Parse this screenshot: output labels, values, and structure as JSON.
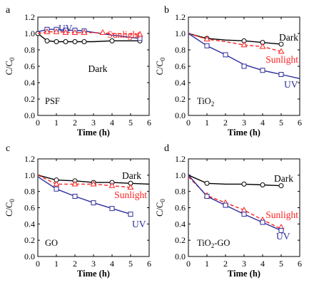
{
  "chart_data": [
    {
      "panel": "a",
      "name": "PSF",
      "type": "line",
      "xlabel": "Time (h)",
      "ylabel": "C/C",
      "ylabel_sub": "0",
      "xlim": [
        0,
        6
      ],
      "ylim": [
        0,
        1.2
      ],
      "xticks": [
        "0",
        "1",
        "2",
        "3",
        "4",
        "5",
        "6"
      ],
      "yticks": [
        "0.0",
        "0.2",
        "0.4",
        "0.6",
        "0.8",
        "1.0",
        "1.2"
      ],
      "series": [
        {
          "name": "Dark",
          "marker": "circle",
          "dashed": false,
          "color": "#000000",
          "points": [
            [
              0,
              1.0
            ],
            [
              0.5,
              0.91
            ],
            [
              1,
              0.9
            ],
            [
              1.5,
              0.9
            ],
            [
              2,
              0.9
            ],
            [
              2.5,
              0.9
            ],
            [
              4,
              0.91
            ],
            [
              5.5,
              0.91
            ]
          ],
          "curve": [
            [
              0,
              1.0
            ],
            [
              0.5,
              0.91
            ],
            [
              1,
              0.9
            ],
            [
              2,
              0.9
            ],
            [
              3,
              0.9
            ],
            [
              4,
              0.91
            ],
            [
              5.5,
              0.91
            ]
          ]
        },
        {
          "name": "UV",
          "marker": "square",
          "dashed": false,
          "color": "#2e2e9a",
          "points": [
            [
              0.5,
              1.05
            ],
            [
              1,
              1.05
            ],
            [
              1.5,
              1.04
            ],
            [
              2,
              1.04
            ],
            [
              2.5,
              1.03
            ],
            [
              5.5,
              0.94
            ]
          ],
          "curve": [
            [
              0,
              1.02
            ],
            [
              0.5,
              1.05
            ],
            [
              1,
              1.05
            ],
            [
              1.5,
              1.04
            ],
            [
              2,
              1.04
            ],
            [
              2.5,
              1.03
            ],
            [
              4,
              0.98
            ],
            [
              5.5,
              0.94
            ]
          ]
        },
        {
          "name": "Sunlight",
          "marker": "triangle",
          "dashed": true,
          "color": "#ff2020",
          "points": [
            [
              0.5,
              1.02
            ],
            [
              1,
              1.02
            ],
            [
              1.5,
              1.01
            ],
            [
              2,
              1.01
            ],
            [
              2.5,
              1.01
            ],
            [
              3.5,
              1.01
            ],
            [
              5.5,
              0.99
            ]
          ],
          "curve": [
            [
              0,
              1.0
            ],
            [
              0.5,
              1.02
            ],
            [
              1,
              1.02
            ],
            [
              2,
              1.01
            ],
            [
              3,
              1.01
            ],
            [
              4,
              1.0
            ],
            [
              5.5,
              0.99
            ]
          ]
        }
      ]
    },
    {
      "panel": "b",
      "name": "TiO",
      "name_sub": "2",
      "type": "line",
      "xlabel": "Time (h)",
      "ylabel": "C/C",
      "ylabel_sub": "0",
      "xlim": [
        0,
        6
      ],
      "ylim": [
        0,
        1.2
      ],
      "xticks": [
        "0",
        "1",
        "2",
        "3",
        "4",
        "5",
        "6"
      ],
      "yticks": [
        "0.0",
        "0.2",
        "0.4",
        "0.6",
        "0.8",
        "1.0",
        "1.2"
      ],
      "series": [
        {
          "name": "Dark",
          "marker": "circle",
          "dashed": false,
          "color": "#000000",
          "points": [
            [
              1,
              0.94
            ],
            [
              3,
              0.91
            ],
            [
              4,
              0.89
            ],
            [
              5,
              0.87
            ]
          ],
          "curve": [
            [
              0,
              1.0
            ],
            [
              1,
              0.94
            ],
            [
              2,
              0.92
            ],
            [
              3,
              0.91
            ],
            [
              4,
              0.89
            ],
            [
              5,
              0.87
            ]
          ]
        },
        {
          "name": "Sunlight",
          "marker": "triangle",
          "dashed": true,
          "color": "#ff2020",
          "points": [
            [
              1,
              0.93
            ],
            [
              3,
              0.86
            ],
            [
              4,
              0.84
            ],
            [
              5,
              0.78
            ]
          ],
          "curve": [
            [
              0,
              1.0
            ],
            [
              1,
              0.93
            ],
            [
              2,
              0.9
            ],
            [
              3,
              0.86
            ],
            [
              4,
              0.84
            ],
            [
              5,
              0.78
            ]
          ]
        },
        {
          "name": "UV",
          "marker": "square",
          "dashed": false,
          "color": "#2e2e9a",
          "points": [
            [
              1,
              0.85
            ],
            [
              2,
              0.74
            ],
            [
              3,
              0.6
            ],
            [
              4,
              0.55
            ],
            [
              5,
              0.5
            ]
          ],
          "curve": [
            [
              0,
              1.0
            ],
            [
              1,
              0.85
            ],
            [
              2,
              0.74
            ],
            [
              3,
              0.62
            ],
            [
              4,
              0.55
            ],
            [
              5,
              0.5
            ],
            [
              6,
              0.45
            ]
          ]
        }
      ]
    },
    {
      "panel": "c",
      "name": "GO",
      "type": "line",
      "xlabel": "Time (h)",
      "ylabel": "C/C",
      "ylabel_sub": "0",
      "xlim": [
        0,
        6
      ],
      "ylim": [
        0,
        1.2
      ],
      "xticks": [
        "0",
        "1",
        "2",
        "3",
        "4",
        "5",
        "6"
      ],
      "yticks": [
        "0.0",
        "0.2",
        "0.4",
        "0.6",
        "0.8",
        "1.0",
        "1.2"
      ],
      "series": [
        {
          "name": "Dark",
          "marker": "circle",
          "dashed": false,
          "color": "#000000",
          "points": [
            [
              1,
              0.94
            ],
            [
              2,
              0.93
            ],
            [
              3,
              0.91
            ],
            [
              4,
              0.91
            ],
            [
              5,
              0.9
            ]
          ],
          "curve": [
            [
              0,
              1.0
            ],
            [
              1,
              0.94
            ],
            [
              2,
              0.93
            ],
            [
              3,
              0.91
            ],
            [
              4,
              0.91
            ],
            [
              5,
              0.9
            ],
            [
              6,
              0.89
            ]
          ]
        },
        {
          "name": "Sunlight",
          "marker": "triangle",
          "dashed": true,
          "color": "#ff2020",
          "points": [
            [
              1,
              0.89
            ],
            [
              2,
              0.89
            ],
            [
              3,
              0.89
            ],
            [
              4,
              0.87
            ],
            [
              5,
              0.85
            ]
          ],
          "curve": [
            [
              0,
              1.0
            ],
            [
              1,
              0.89
            ],
            [
              2,
              0.89
            ],
            [
              3,
              0.89
            ],
            [
              4,
              0.87
            ],
            [
              5,
              0.85
            ]
          ]
        },
        {
          "name": "UV",
          "marker": "square",
          "dashed": false,
          "color": "#2e2e9a",
          "points": [
            [
              1,
              0.83
            ],
            [
              2,
              0.74
            ],
            [
              3,
              0.66
            ],
            [
              4,
              0.59
            ],
            [
              5,
              0.52
            ]
          ],
          "curve": [
            [
              0,
              0.98
            ],
            [
              1,
              0.83
            ],
            [
              2,
              0.74
            ],
            [
              3,
              0.66
            ],
            [
              4,
              0.59
            ],
            [
              5,
              0.52
            ]
          ]
        }
      ]
    },
    {
      "panel": "d",
      "name": "TiO",
      "name_sub": "2",
      "name_suffix": "-GO",
      "type": "line",
      "xlabel": "Time (h)",
      "ylabel": "C/C",
      "ylabel_sub": "0",
      "xlim": [
        0,
        6
      ],
      "ylim": [
        0,
        1.2
      ],
      "xticks": [
        "0",
        "1",
        "2",
        "3",
        "4",
        "5",
        "6"
      ],
      "yticks": [
        "0.0",
        "0.2",
        "0.4",
        "0.6",
        "0.8",
        "1.0",
        "1.2"
      ],
      "series": [
        {
          "name": "Dark",
          "marker": "circle",
          "dashed": false,
          "color": "#000000",
          "points": [
            [
              1,
              0.9
            ],
            [
              3,
              0.89
            ],
            [
              4,
              0.88
            ],
            [
              5,
              0.87
            ]
          ],
          "curve": [
            [
              0,
              1.0
            ],
            [
              1,
              0.9
            ],
            [
              2,
              0.89
            ],
            [
              3,
              0.89
            ],
            [
              4,
              0.88
            ],
            [
              5,
              0.87
            ]
          ]
        },
        {
          "name": "Sunlight",
          "marker": "triangle",
          "dashed": true,
          "color": "#ff2020",
          "points": [
            [
              1,
              0.75
            ],
            [
              2,
              0.66
            ],
            [
              3,
              0.57
            ],
            [
              4,
              0.45
            ],
            [
              5,
              0.36
            ]
          ],
          "curve": [
            [
              0,
              0.98
            ],
            [
              1,
              0.75
            ],
            [
              2,
              0.66
            ],
            [
              3,
              0.57
            ],
            [
              4,
              0.45
            ],
            [
              5,
              0.34
            ]
          ]
        },
        {
          "name": "UV",
          "marker": "square",
          "dashed": false,
          "color": "#2e2e9a",
          "points": [
            [
              1,
              0.74
            ],
            [
              2,
              0.63
            ],
            [
              3,
              0.52
            ],
            [
              4,
              0.42
            ],
            [
              5,
              0.32
            ]
          ],
          "curve": [
            [
              0,
              1.0
            ],
            [
              1,
              0.74
            ],
            [
              2,
              0.63
            ],
            [
              3,
              0.52
            ],
            [
              4,
              0.42
            ],
            [
              5,
              0.32
            ]
          ]
        }
      ]
    }
  ]
}
